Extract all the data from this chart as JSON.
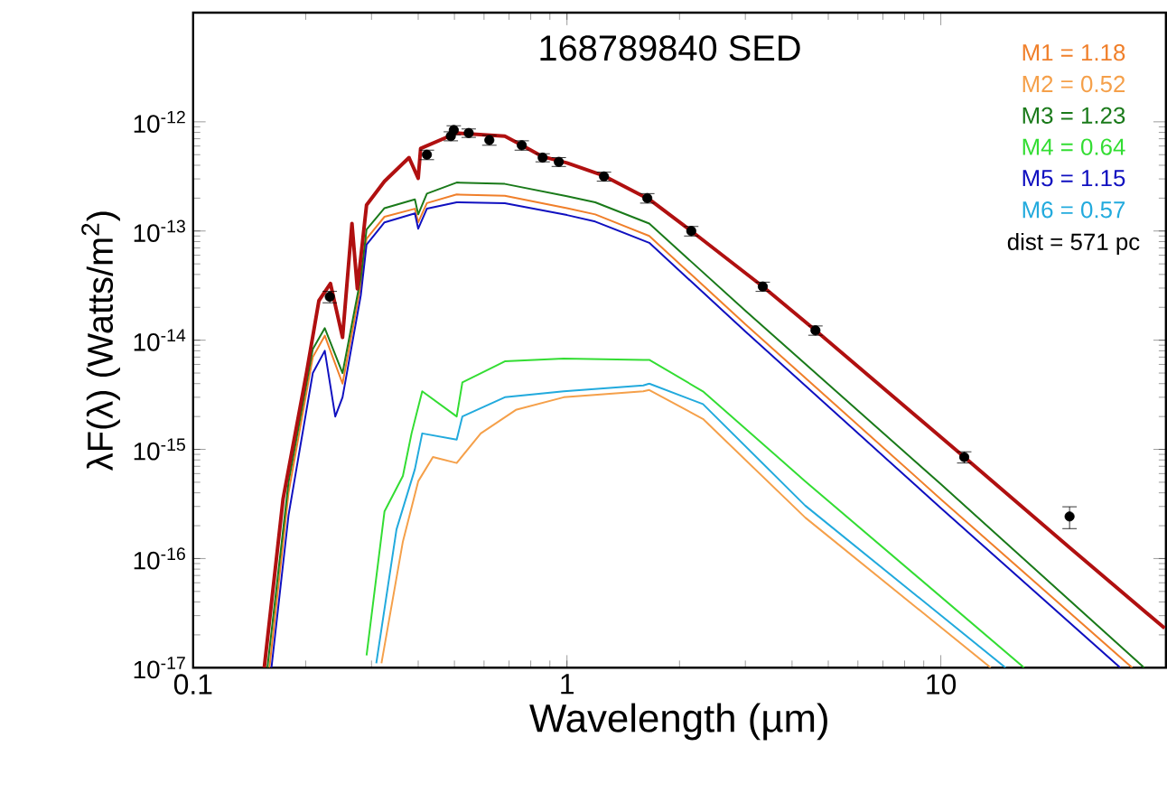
{
  "chart_data": {
    "type": "line",
    "title": "168789840 SED",
    "xlabel": "Wavelength (µm)",
    "ylabel": "λF(λ) (Watts/m$^{2}$)",
    "log": "xy",
    "legend": "top right",
    "xlim": [
      0.1,
      40
    ],
    "ylim": [
      1e-17,
      1e-11
    ],
    "xticks": [
      0.1,
      1,
      10
    ],
    "yticks": [
      {
        "value": 1e-17,
        "label": "10$^{-17}$"
      },
      {
        "value": 1e-16,
        "label": "10$^{-16}$"
      },
      {
        "value": 1e-15,
        "label": "10$^{-15}$"
      },
      {
        "value": 1e-14,
        "label": "10$^{-14}$"
      },
      {
        "value": 1e-13,
        "label": "10$^{-13}$"
      },
      {
        "value": 1e-12,
        "label": "10$^{-12}$"
      }
    ],
    "annotations": [
      "dist = 571 pc"
    ],
    "series": [
      {
        "name": "M1 = 1.18",
        "color": "#f07f2a",
        "x": [
          0.16,
          0.18,
          0.209,
          0.225,
          0.251,
          0.281,
          0.291,
          0.325,
          0.392,
          0.4,
          0.422,
          0.507,
          0.682,
          1,
          1.19,
          1.66,
          3,
          10,
          32.5
        ],
        "values": [
          1e-17,
          4e-16,
          7e-15,
          1.1e-14,
          4e-15,
          3.2e-14,
          8.5e-14,
          1.35e-13,
          1.6e-13,
          1.2e-13,
          1.8e-13,
          2.16e-13,
          2.1e-13,
          1.62e-13,
          1.42e-13,
          9e-14,
          1.4e-14,
          3.5e-16,
          1e-17
        ]
      },
      {
        "name": "M2 = 0.52",
        "color": "#f5a04a",
        "x": [
          0.319,
          0.364,
          0.4,
          0.438,
          0.507,
          0.588,
          0.73,
          0.98,
          1.6,
          1.66,
          2.31,
          4.34,
          13.6
        ],
        "values": [
          1.1e-17,
          1.43e-16,
          5.1e-16,
          8.5e-16,
          7.5e-16,
          1.4e-15,
          2.3e-15,
          3e-15,
          3.4e-15,
          3.5e-15,
          1.9e-15,
          2.37e-16,
          1e-17
        ]
      },
      {
        "name": "M3 = 1.23",
        "color": "#1a7a1a",
        "x": [
          0.158,
          0.18,
          0.209,
          0.225,
          0.251,
          0.281,
          0.291,
          0.325,
          0.392,
          0.4,
          0.422,
          0.507,
          0.682,
          1,
          1.19,
          1.66,
          3,
          10,
          35
        ],
        "values": [
          1e-17,
          5e-16,
          8.3e-15,
          1.29e-14,
          5e-15,
          3.77e-14,
          1.03e-13,
          1.62e-13,
          1.95e-13,
          1.42e-13,
          2.2e-13,
          2.78e-13,
          2.7e-13,
          2.08e-13,
          1.83e-13,
          1.17e-13,
          1.86e-14,
          4.8e-16,
          1e-17
        ]
      },
      {
        "name": "M4 = 0.64",
        "color": "#33dd33",
        "x": [
          0.291,
          0.325,
          0.364,
          0.384,
          0.41,
          0.507,
          0.525,
          0.682,
          0.98,
          1.6,
          1.66,
          2.31,
          4.34,
          16.7
        ],
        "values": [
          1.3e-17,
          2.7e-16,
          5.7e-16,
          1.4e-15,
          3.4e-15,
          2e-15,
          4.1e-15,
          6.4e-15,
          6.8e-15,
          6.6e-15,
          6.6e-15,
          3.4e-15,
          5.1e-16,
          1e-17
        ]
      },
      {
        "name": "M5 = 1.15",
        "color": "#1010c0",
        "x": [
          0.162,
          0.18,
          0.209,
          0.225,
          0.24,
          0.251,
          0.281,
          0.291,
          0.325,
          0.392,
          0.4,
          0.422,
          0.507,
          0.682,
          1,
          1.19,
          1.66,
          3,
          10,
          30.2
        ],
        "values": [
          1e-17,
          2.5e-16,
          5e-15,
          8e-15,
          2e-15,
          3e-15,
          2.6e-14,
          7.5e-14,
          1.2e-13,
          1.45e-13,
          1.05e-13,
          1.6e-13,
          1.83e-13,
          1.8e-13,
          1.4e-13,
          1.22e-13,
          7.8e-14,
          1.2e-14,
          2.9e-16,
          1e-17
        ]
      },
      {
        "name": "M6 = 0.57",
        "color": "#22aadd",
        "x": [
          0.309,
          0.35,
          0.392,
          0.41,
          0.507,
          0.525,
          0.682,
          0.98,
          1.6,
          1.66,
          2.31,
          4.34,
          14.9
        ],
        "values": [
          1.1e-17,
          1.85e-16,
          6.6e-16,
          1.4e-15,
          1.23e-15,
          2e-15,
          3e-15,
          3.4e-15,
          3.85e-15,
          4e-15,
          2.6e-15,
          3.05e-16,
          1e-17
        ]
      },
      {
        "color": "#b01010",
        "x": [
          0.155,
          0.174,
          0.201,
          0.217,
          0.233,
          0.251,
          0.266,
          0.275,
          0.291,
          0.325,
          0.378,
          0.4,
          0.406,
          0.507,
          0.682,
          0.757,
          0.861,
          1,
          1.256,
          1.66,
          2.15,
          3.34,
          4.62,
          11.55,
          22.1,
          39.7
        ],
        "values": [
          1e-17,
          3.5e-16,
          5e-15,
          2.3e-14,
          3.3e-14,
          1.06e-14,
          1.17e-13,
          2.95e-14,
          1.73e-13,
          2.85e-13,
          4.7e-13,
          3.04e-13,
          5.7e-13,
          7.9e-13,
          7.4e-13,
          6.1e-13,
          4.8e-13,
          4.2e-13,
          3.2e-13,
          1.95e-13,
          1e-13,
          3.1e-14,
          1.23e-14,
          8.5e-16,
          1.26e-16,
          2.3e-17
        ]
      },
      {
        "type": "scatter",
        "color": "#000000",
        "x": [
          0.232,
          0.422,
          0.489,
          0.498,
          0.546,
          0.62,
          0.757,
          0.861,
          0.951,
          1.256,
          1.64,
          2.15,
          3.34,
          4.62,
          11.55,
          22.1
        ],
        "values": [
          2.5e-14,
          5e-13,
          7.4e-13,
          8.4e-13,
          7.9e-13,
          6.8e-13,
          6.1e-13,
          4.7e-13,
          4.3e-13,
          3.16e-13,
          2e-13,
          1e-13,
          3.1e-14,
          1.23e-14,
          8.5e-16,
          2.43e-16
        ],
        "errors": [
          3e-15,
          5e-14,
          7e-14,
          8e-14,
          7e-14,
          7e-14,
          6e-14,
          4e-14,
          4e-14,
          3e-14,
          2e-14,
          1e-14,
          3e-15,
          1.2e-15,
          1e-16,
          5.5e-17
        ]
      }
    ]
  }
}
